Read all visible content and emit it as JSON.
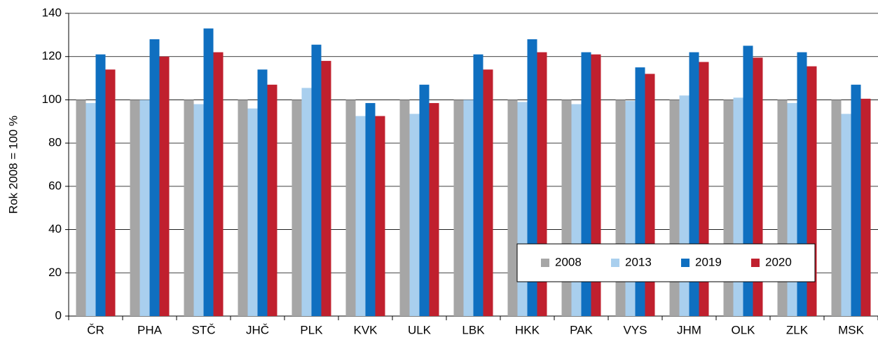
{
  "chart_data": {
    "type": "bar",
    "ylabel": "Rok  2008 = 100 %",
    "categories": [
      "ČR",
      "PHA",
      "STČ",
      "JHČ",
      "PLK",
      "KVK",
      "ULK",
      "LBK",
      "HKK",
      "PAK",
      "VYS",
      "JHM",
      "OLK",
      "ZLK",
      "MSK"
    ],
    "series": [
      {
        "name": "2008",
        "color": "#a6a6a6",
        "values": [
          100,
          100,
          100,
          100,
          100,
          100,
          100,
          100,
          100,
          100,
          100,
          100,
          100,
          100,
          100
        ]
      },
      {
        "name": "2013",
        "color": "#a9cfee",
        "values": [
          98.5,
          100,
          98,
          96,
          105.5,
          92.5,
          93.5,
          100,
          99,
          98,
          99.5,
          102,
          101,
          98.5,
          93.5
        ]
      },
      {
        "name": "2019",
        "color": "#0f6fc0",
        "values": [
          121,
          128,
          133,
          114,
          125.5,
          98.5,
          107,
          121,
          128,
          122,
          115,
          122,
          125,
          122,
          107
        ]
      },
      {
        "name": "2020",
        "color": "#c0202e",
        "values": [
          114,
          120,
          122,
          107,
          118,
          92.5,
          98.5,
          114,
          122,
          121,
          112,
          117.5,
          119.5,
          115.5,
          100.5
        ]
      }
    ],
    "ylim": [
      0,
      140
    ],
    "yticks": [
      0,
      20,
      40,
      60,
      80,
      100,
      120,
      140
    ],
    "grid": true,
    "legend": "lower right"
  }
}
